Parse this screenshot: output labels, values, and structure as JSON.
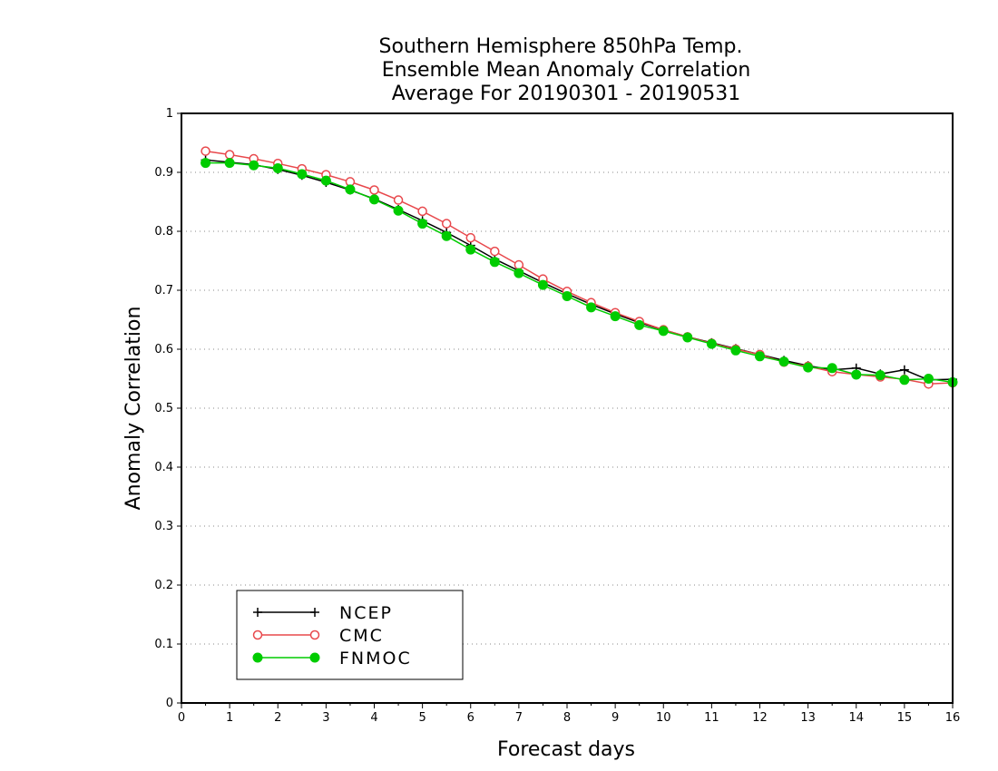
{
  "chart_data": {
    "type": "line",
    "title_lines": [
      "Southern Hemisphere 850hPa Temp.",
      "Ensemble Mean Anomaly Correlation",
      "Average For 20190301 - 20190531"
    ],
    "xlabel": "Forecast days",
    "ylabel": "Anomaly Correlation",
    "xlim": [
      0,
      16
    ],
    "ylim": [
      0,
      1
    ],
    "xticks": [
      0,
      1,
      2,
      3,
      4,
      5,
      6,
      7,
      8,
      9,
      10,
      11,
      12,
      13,
      14,
      15,
      16
    ],
    "yticks": [
      0,
      0.1,
      0.2,
      0.3,
      0.4,
      0.5,
      0.6,
      0.7,
      0.8,
      0.9,
      1
    ],
    "ytick_labels": [
      "0",
      "0.1",
      "0.2",
      "0.3",
      "0.4",
      "0.5",
      "0.6",
      "0.7",
      "0.8",
      "0.9",
      "1"
    ],
    "grid": "horizontal-dotted",
    "legend_position": "bottom-left",
    "x": [
      0.5,
      1,
      1.5,
      2,
      2.5,
      3,
      3.5,
      4,
      4.5,
      5,
      5.5,
      6,
      6.5,
      7,
      7.5,
      8,
      8.5,
      9,
      9.5,
      10,
      10.5,
      11,
      11.5,
      12,
      12.5,
      13,
      13.5,
      14,
      14.5,
      15,
      15.5,
      16
    ],
    "series": [
      {
        "name": "NCEP",
        "color": "#000000",
        "marker": "plus",
        "values": [
          0.921,
          0.917,
          0.913,
          0.905,
          0.895,
          0.883,
          0.87,
          0.855,
          0.837,
          0.818,
          0.798,
          0.776,
          0.753,
          0.733,
          0.713,
          0.694,
          0.676,
          0.66,
          0.645,
          0.633,
          0.621,
          0.611,
          0.601,
          0.591,
          0.581,
          0.572,
          0.565,
          0.568,
          0.558,
          0.565,
          0.548,
          0.549
        ]
      },
      {
        "name": "CMC",
        "color": "#e8484c",
        "marker": "open-circle",
        "values": [
          0.936,
          0.93,
          0.923,
          0.915,
          0.906,
          0.896,
          0.884,
          0.87,
          0.853,
          0.834,
          0.813,
          0.789,
          0.766,
          0.743,
          0.719,
          0.698,
          0.679,
          0.662,
          0.647,
          0.633,
          0.621,
          0.61,
          0.6,
          0.591,
          0.578,
          0.571,
          0.562,
          0.557,
          0.553,
          0.549,
          0.541,
          0.543
        ]
      },
      {
        "name": "FNMOC",
        "color": "#00cc00",
        "marker": "filled-circle",
        "values": [
          0.916,
          0.916,
          0.912,
          0.907,
          0.897,
          0.886,
          0.871,
          0.854,
          0.835,
          0.813,
          0.792,
          0.769,
          0.748,
          0.729,
          0.709,
          0.69,
          0.671,
          0.656,
          0.641,
          0.631,
          0.62,
          0.609,
          0.598,
          0.588,
          0.579,
          0.569,
          0.568,
          0.557,
          0.556,
          0.548,
          0.55,
          0.544
        ]
      }
    ]
  }
}
